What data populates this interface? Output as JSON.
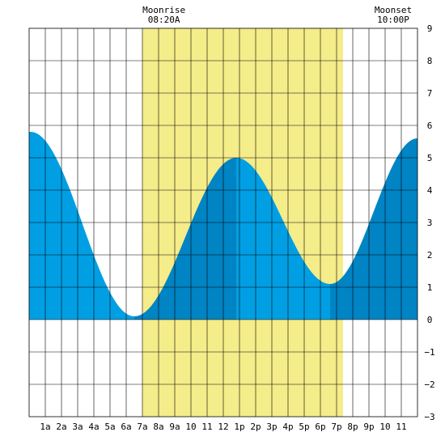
{
  "chart_data": {
    "type": "area",
    "title": "",
    "xlabel": "",
    "ylabel": "",
    "x_unit": "hour",
    "xlim": [
      0,
      24
    ],
    "ylim": [
      -3,
      9
    ],
    "y_ticks": [
      9,
      8,
      7,
      6,
      5,
      4,
      3,
      2,
      1,
      0,
      -1,
      -2,
      -3
    ],
    "y_tick_labels": [
      "9",
      "8",
      "7",
      "6",
      "5",
      "4",
      "3",
      "2",
      "1",
      "0",
      "−1",
      "−2",
      "−3"
    ],
    "x_ticks": [
      1,
      2,
      3,
      4,
      5,
      6,
      7,
      8,
      9,
      10,
      11,
      12,
      13,
      14,
      15,
      16,
      17,
      18,
      19,
      20,
      21,
      22,
      23
    ],
    "x_tick_labels": [
      "1a",
      "2a",
      "3a",
      "4a",
      "5a",
      "6a",
      "7a",
      "8a",
      "9a",
      "10",
      "11",
      "12",
      "1p",
      "2p",
      "3p",
      "4p",
      "5p",
      "6p",
      "7p",
      "8p",
      "9p",
      "10",
      "11"
    ],
    "grid": true,
    "daylight": {
      "start": 7.0,
      "end": 19.4,
      "color": "#f5ec8a"
    },
    "tide_extremes": [
      {
        "time": 0.1,
        "height": 5.8,
        "kind": "high"
      },
      {
        "time": 6.5,
        "height": 0.1,
        "kind": "low"
      },
      {
        "time": 12.8,
        "height": 5.0,
        "kind": "high"
      },
      {
        "time": 18.6,
        "height": 1.1,
        "kind": "low"
      },
      {
        "time": 24.0,
        "height": 5.6,
        "kind": "high"
      }
    ],
    "colors": {
      "rising": "#0084c4",
      "falling": "#009fe3",
      "grid": "#000000",
      "background": "#ffffff"
    }
  },
  "moon": {
    "rise_label": "Moonrise",
    "rise_time": "08:20A",
    "rise_hour": 8.33,
    "set_label": "Moonset",
    "set_time": "10:00P",
    "set_hour": 22.0
  }
}
